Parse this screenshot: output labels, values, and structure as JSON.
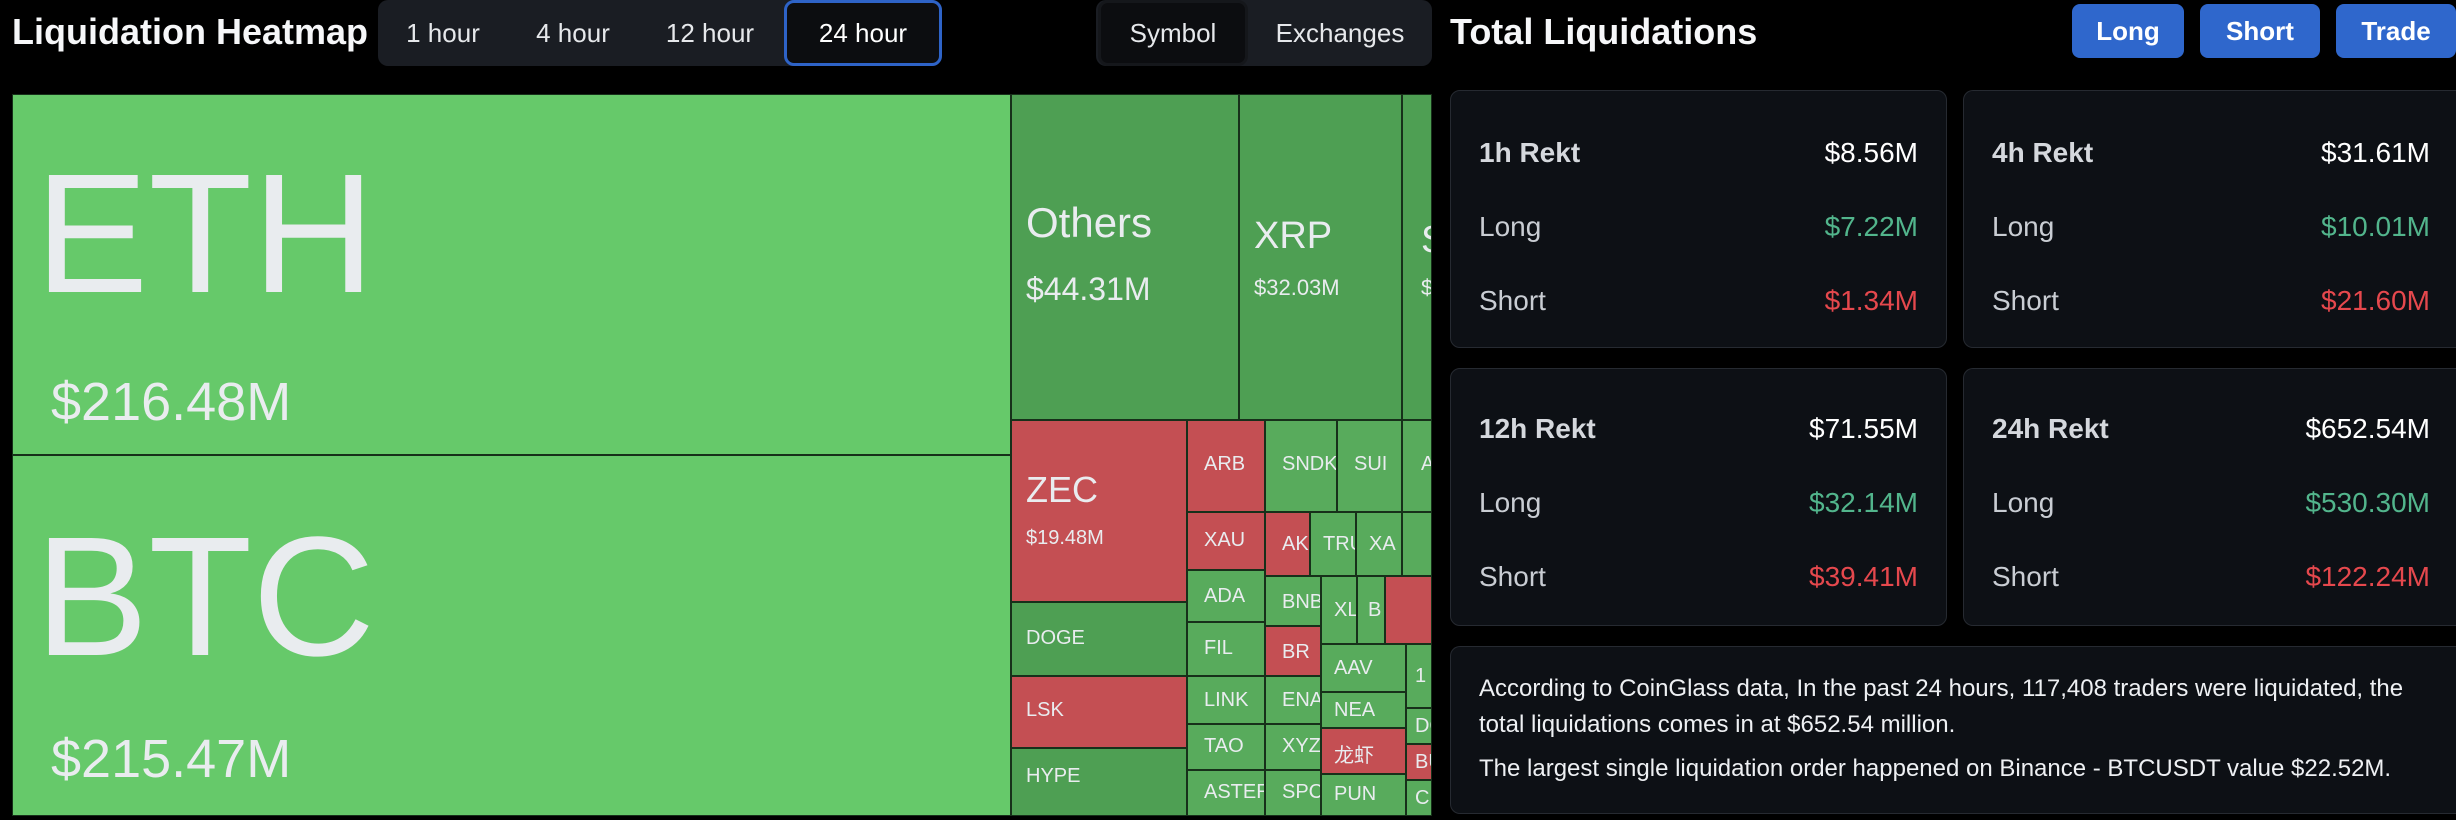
{
  "heatmap": {
    "title": "Liquidation Heatmap",
    "timeframes": [
      "1 hour",
      "4 hour",
      "12 hour",
      "24 hour"
    ],
    "active_timeframe": "24 hour",
    "views": [
      "Symbol",
      "Exchanges"
    ],
    "active_view": "Symbol",
    "tiles": {
      "eth": {
        "symbol": "ETH",
        "value": "$216.48M"
      },
      "btc": {
        "symbol": "BTC",
        "value": "$215.47M"
      },
      "others": {
        "symbol": "Others",
        "value": "$44.31M"
      },
      "xrp": {
        "symbol": "XRP",
        "value": "$32.03M"
      },
      "s_cut": {
        "symbol": "S",
        "value": "$"
      },
      "zec": {
        "symbol": "ZEC",
        "value": "$19.48M"
      },
      "arb": "ARB",
      "sndk": "SNDK",
      "sui": "SUI",
      "a_cut": "A",
      "xau": "XAU",
      "akt": "AKT",
      "tru": "TRU",
      "xa": "XA",
      "ada": "ADA",
      "bnb": "BNB",
      "xl": "XL",
      "b_cut": "B",
      "doge": "DOGE",
      "fil": "FIL",
      "br": "BR",
      "aav": "AAV",
      "one": "1",
      "link": "LINK",
      "ena": "ENA",
      "nea": "NEA",
      "do": "DO",
      "lsk": "LSK",
      "tao": "TAO",
      "xyz": "XYZ:",
      "cjk": "龙虾",
      "bu": "BU",
      "hype": "HYPE",
      "aster": "ASTER",
      "spcx": "SPCX",
      "pun": "PUN",
      "cr": "CR"
    }
  },
  "totals": {
    "title": "Total Liquidations",
    "buttons": {
      "long": "Long",
      "short": "Short",
      "trade": "Trade"
    },
    "labels": {
      "long": "Long",
      "short": "Short"
    },
    "cards": [
      {
        "label": "1h Rekt",
        "total": "$8.56M",
        "long": "$7.22M",
        "short": "$1.34M"
      },
      {
        "label": "4h Rekt",
        "total": "$31.61M",
        "long": "$10.01M",
        "short": "$21.60M"
      },
      {
        "label": "12h Rekt",
        "total": "$71.55M",
        "long": "$32.14M",
        "short": "$39.41M"
      },
      {
        "label": "24h Rekt",
        "total": "$652.54M",
        "long": "$530.30M",
        "short": "$122.24M"
      }
    ],
    "summary_line1": "According to CoinGlass data, In the past 24 hours, 117,408 traders were liquidated, the",
    "summary_line2": "total liquidations comes in at $652.54 million.",
    "summary_line3": "The largest single liquidation order happened on Binance - BTCUSDT value $22.52M."
  },
  "colors": {
    "long_green": "#52b58c",
    "short_red": "#e5484d",
    "accent_blue": "#2f67cc",
    "tile_green": "#66c96a",
    "tile_dark_green": "#4e9f53",
    "tile_red": "#c44f53"
  }
}
